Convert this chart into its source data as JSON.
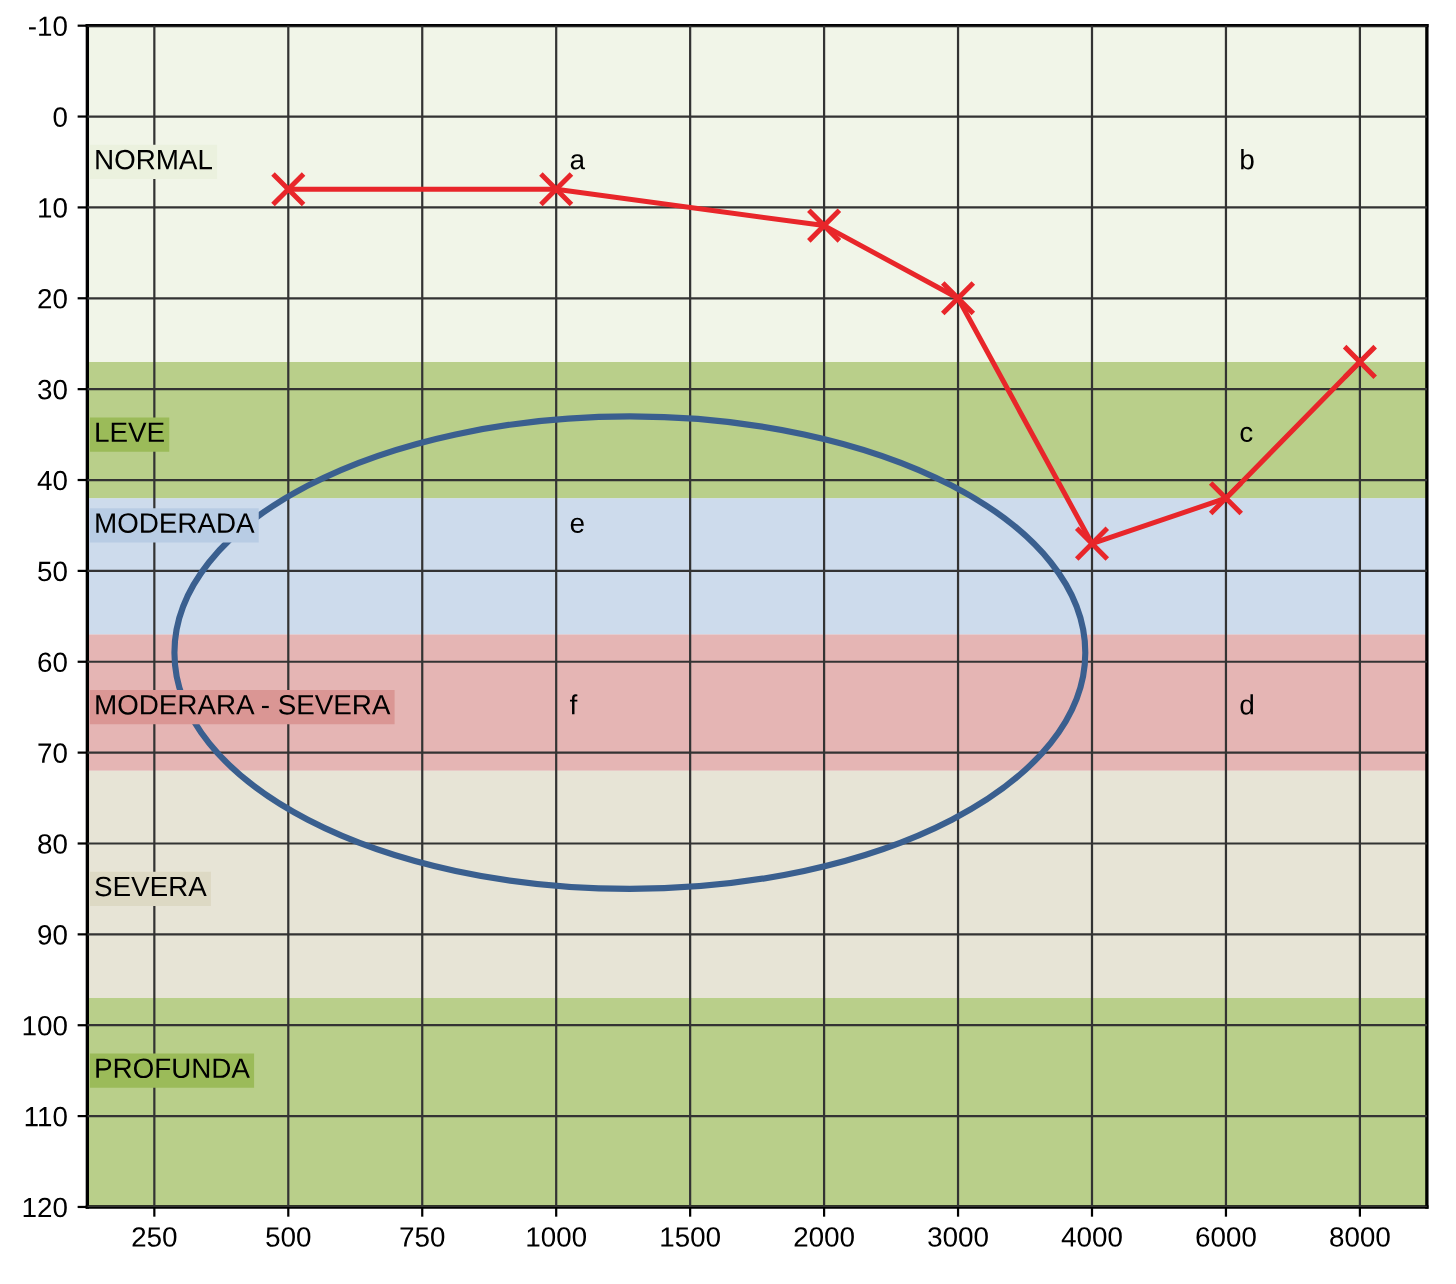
{
  "chart_data": {
    "type": "line",
    "categories": [
      "250",
      "500",
      "750",
      "1000",
      "1500",
      "2000",
      "3000",
      "4000",
      "6000",
      "8000"
    ],
    "series": [
      {
        "color": "#e8262a",
        "values": [
          null,
          8,
          null,
          8,
          null,
          12,
          20,
          47,
          42,
          27
        ]
      }
    ],
    "marker": "cross",
    "line_style": "solid",
    "grid": true,
    "ylim": [
      120,
      -10
    ],
    "yticks": [
      -10,
      0,
      10,
      20,
      30,
      40,
      50,
      60,
      70,
      80,
      90,
      100,
      110,
      120
    ],
    "bands": [
      {
        "axis": "y",
        "from": -10,
        "to": 27,
        "label": "NORMAL",
        "color": "#ebf1de"
      },
      {
        "axis": "y",
        "from": 27,
        "to": 42,
        "label": "LEVE",
        "color": "#9bbb59"
      },
      {
        "axis": "y",
        "from": 42,
        "to": 57,
        "label": "MODERADA",
        "color": "#b8cce4"
      },
      {
        "axis": "y",
        "from": 57,
        "to": 72,
        "label": "MODERARA - SEVERA",
        "color": "#da9694"
      },
      {
        "axis": "y",
        "from": 72,
        "to": 97,
        "label": "SEVERA",
        "color": "#ddd9c4"
      },
      {
        "axis": "y",
        "from": 97,
        "to": 120,
        "label": "PROFUNDA",
        "color": "#9bbb59"
      }
    ],
    "annotations": [
      "a",
      "b",
      "e",
      "c",
      "f",
      "d"
    ]
  }
}
